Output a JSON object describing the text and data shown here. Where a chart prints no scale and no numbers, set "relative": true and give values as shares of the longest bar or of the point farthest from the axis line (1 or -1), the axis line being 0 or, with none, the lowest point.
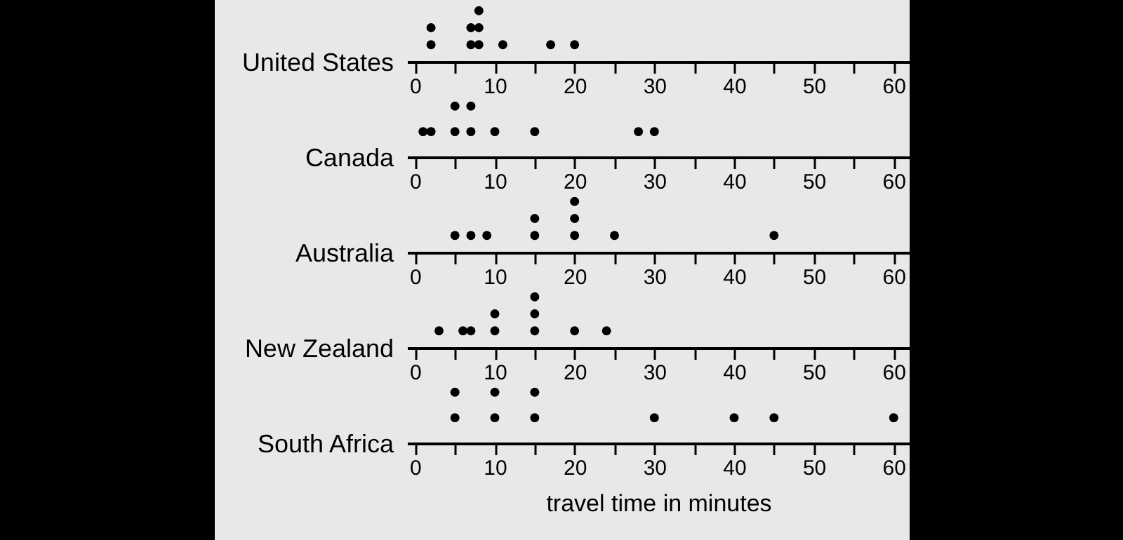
{
  "chart_data": [
    {
      "type": "scatter",
      "ylabel": "United States",
      "relative": true,
      "marker": "circle",
      "color": "#000000",
      "grid": false,
      "xlim": [
        -1,
        62
      ],
      "xticks": [
        0,
        {
          "value": 5,
          "label": null
        },
        10,
        {
          "value": 15,
          "label": null
        },
        20,
        {
          "value": 25,
          "label": null
        },
        30,
        {
          "value": 35,
          "label": null
        },
        40,
        {
          "value": 45,
          "label": null
        },
        50,
        {
          "value": 55,
          "label": null
        },
        60
      ],
      "x": [
        2,
        2,
        7,
        7,
        8,
        8,
        8,
        11,
        17,
        20
      ],
      "values": [
        0.333,
        0.667,
        0.333,
        0.667,
        0.333,
        0.667,
        1,
        0.333,
        0.333,
        0.333
      ]
    },
    {
      "type": "scatter",
      "ylabel": "Canada",
      "relative": true,
      "marker": "circle",
      "color": "#000000",
      "grid": false,
      "xlim": [
        -1,
        62
      ],
      "xticks": [
        0,
        {
          "value": 5,
          "label": null
        },
        10,
        {
          "value": 15,
          "label": null
        },
        20,
        {
          "value": 25,
          "label": null
        },
        30,
        {
          "value": 35,
          "label": null
        },
        40,
        {
          "value": 45,
          "label": null
        },
        50,
        {
          "value": 55,
          "label": null
        },
        60
      ],
      "x": [
        1,
        2,
        5,
        5,
        7,
        7,
        10,
        15,
        28,
        30
      ],
      "values": [
        0.5,
        0.5,
        0.5,
        1,
        0.5,
        1,
        0.5,
        0.5,
        0.5,
        0.5
      ]
    },
    {
      "type": "scatter",
      "ylabel": "Australia",
      "relative": true,
      "marker": "circle",
      "color": "#000000",
      "grid": false,
      "xlim": [
        -1,
        62
      ],
      "xticks": [
        0,
        {
          "value": 5,
          "label": null
        },
        10,
        {
          "value": 15,
          "label": null
        },
        20,
        {
          "value": 25,
          "label": null
        },
        30,
        {
          "value": 35,
          "label": null
        },
        40,
        {
          "value": 45,
          "label": null
        },
        50,
        {
          "value": 55,
          "label": null
        },
        60
      ],
      "x": [
        5,
        7,
        9,
        15,
        15,
        20,
        20,
        20,
        25,
        45
      ],
      "values": [
        0.333,
        0.333,
        0.333,
        0.333,
        0.667,
        0.333,
        0.667,
        1,
        0.333,
        0.333
      ]
    },
    {
      "type": "scatter",
      "ylabel": "New Zealand",
      "relative": true,
      "marker": "circle",
      "color": "#000000",
      "grid": false,
      "xlim": [
        -1,
        62
      ],
      "xticks": [
        0,
        {
          "value": 5,
          "label": null
        },
        10,
        {
          "value": 15,
          "label": null
        },
        20,
        {
          "value": 25,
          "label": null
        },
        30,
        {
          "value": 35,
          "label": null
        },
        40,
        {
          "value": 45,
          "label": null
        },
        50,
        {
          "value": 55,
          "label": null
        },
        60
      ],
      "x": [
        3,
        6,
        7,
        10,
        10,
        15,
        15,
        15,
        20,
        24
      ],
      "values": [
        0.333,
        0.333,
        0.333,
        0.333,
        0.667,
        0.333,
        0.667,
        1,
        0.333,
        0.333
      ]
    },
    {
      "type": "scatter",
      "ylabel": "South Africa",
      "xlabel": "travel time in minutes",
      "relative": true,
      "marker": "circle",
      "color": "#000000",
      "grid": false,
      "xlim": [
        -1,
        62
      ],
      "xticks": [
        0,
        {
          "value": 5,
          "label": null
        },
        10,
        {
          "value": 15,
          "label": null
        },
        20,
        {
          "value": 25,
          "label": null
        },
        30,
        {
          "value": 35,
          "label": null
        },
        40,
        {
          "value": 45,
          "label": null
        },
        50,
        {
          "value": 55,
          "label": null
        },
        60
      ],
      "x": [
        5,
        5,
        10,
        10,
        15,
        15,
        30,
        40,
        45,
        60
      ],
      "values": [
        0.5,
        1,
        0.5,
        1,
        0.5,
        1,
        0.5,
        0.5,
        0.5,
        0.5
      ]
    }
  ]
}
